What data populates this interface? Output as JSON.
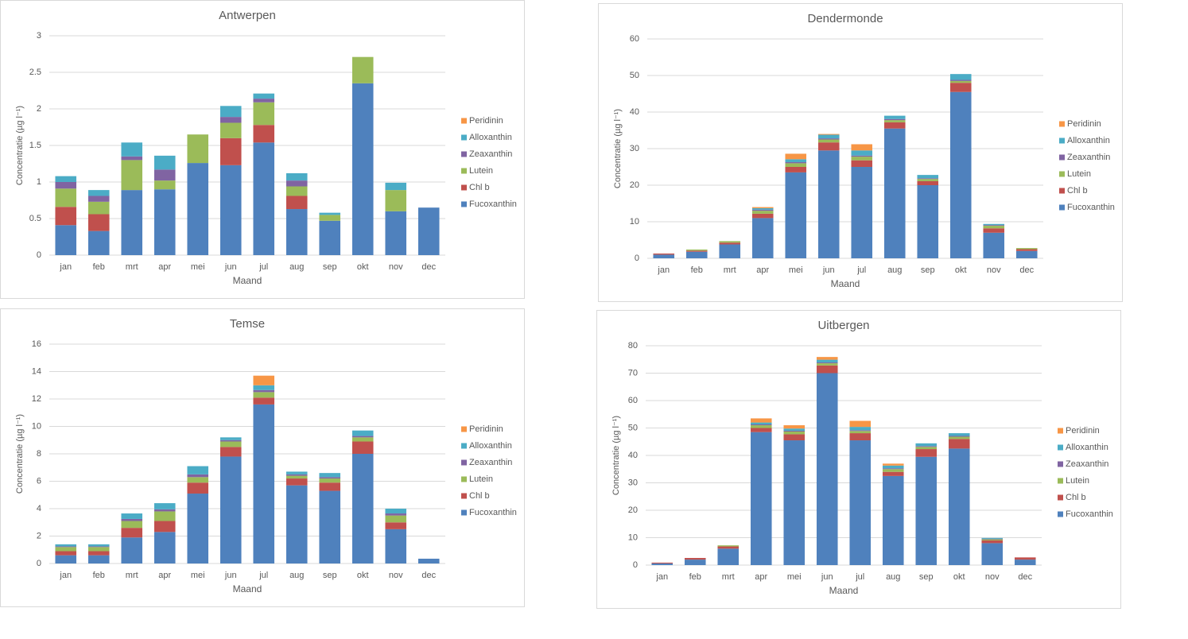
{
  "chart_data": [
    {
      "type": "bar",
      "stacked": true,
      "title": "Antwerpen",
      "x_label": "Maand",
      "y_label": "Concentratie (µg l⁻¹)",
      "categories": [
        "jan",
        "feb",
        "mrt",
        "apr",
        "mei",
        "jun",
        "jul",
        "aug",
        "sep",
        "okt",
        "nov",
        "dec"
      ],
      "ylim": [
        0,
        3
      ],
      "yticks": [
        0,
        0.5,
        1,
        1.5,
        2,
        2.5,
        3
      ],
      "grid": true,
      "legend": "right",
      "series": [
        {
          "name": "Fucoxanthin",
          "color": "#4f81bd",
          "values": [
            0.41,
            0.33,
            0.89,
            0.9,
            1.26,
            1.23,
            1.54,
            0.63,
            0.47,
            2.35,
            0.6,
            0.65
          ]
        },
        {
          "name": "Chl b",
          "color": "#c0504d",
          "values": [
            0.25,
            0.23,
            0,
            0,
            0,
            0.37,
            0.24,
            0.18,
            0,
            0,
            0,
            0
          ]
        },
        {
          "name": "Lutein",
          "color": "#9bbb59",
          "values": [
            0.25,
            0.17,
            0.41,
            0.12,
            0.39,
            0.21,
            0.31,
            0.13,
            0.08,
            0.36,
            0.29,
            0
          ]
        },
        {
          "name": "Zeaxanthin",
          "color": "#8064a2",
          "values": [
            0.09,
            0.08,
            0.05,
            0.15,
            0,
            0.08,
            0.05,
            0.08,
            0,
            0,
            0,
            0
          ]
        },
        {
          "name": "Alloxanthin",
          "color": "#4bacc6",
          "values": [
            0.08,
            0.08,
            0.19,
            0.19,
            0,
            0.15,
            0.07,
            0.1,
            0.03,
            0,
            0.1,
            0
          ]
        },
        {
          "name": "Peridinin",
          "color": "#f79646",
          "values": [
            0,
            0,
            0,
            0,
            0,
            0,
            0,
            0,
            0,
            0,
            0,
            0
          ]
        }
      ]
    },
    {
      "type": "bar",
      "stacked": true,
      "title": "Dendermonde",
      "x_label": "Maand",
      "y_label": "Concentratie (µg l⁻¹)",
      "categories": [
        "jan",
        "feb",
        "mrt",
        "apr",
        "mei",
        "jun",
        "jul",
        "aug",
        "sep",
        "okt",
        "nov",
        "dec"
      ],
      "ylim": [
        0,
        60
      ],
      "yticks": [
        0,
        10,
        20,
        30,
        40,
        50,
        60
      ],
      "grid": true,
      "legend": "right",
      "series": [
        {
          "name": "Fucoxanthin",
          "color": "#4f81bd",
          "values": [
            1,
            1.8,
            3.8,
            11,
            23.5,
            29.5,
            25,
            35.5,
            20,
            45.5,
            7,
            2
          ]
        },
        {
          "name": "Chl b",
          "color": "#c0504d",
          "values": [
            0.3,
            0.3,
            0.5,
            1.2,
            1.5,
            2.2,
            1.8,
            1.7,
            1.1,
            2.5,
            1.2,
            0.5
          ]
        },
        {
          "name": "Lutein",
          "color": "#9bbb59",
          "values": [
            0,
            0.3,
            0.4,
            0.8,
            1,
            0.8,
            1,
            0.6,
            0.6,
            0.5,
            0.7,
            0.3
          ]
        },
        {
          "name": "Zeaxanthin",
          "color": "#8064a2",
          "values": [
            0,
            0,
            0,
            0.3,
            0.3,
            0.3,
            0.3,
            0.3,
            0.2,
            0.3,
            0.2,
            0
          ]
        },
        {
          "name": "Alloxanthin",
          "color": "#4bacc6",
          "values": [
            0,
            0,
            0,
            0.4,
            0.8,
            1,
            1.4,
            0.9,
            0.9,
            1.6,
            0.3,
            0
          ]
        },
        {
          "name": "Peridinin",
          "color": "#f79646",
          "values": [
            0,
            0,
            0,
            0.3,
            1.5,
            0.2,
            1.7,
            0,
            0,
            0,
            0,
            0
          ]
        }
      ]
    },
    {
      "type": "bar",
      "stacked": true,
      "title": "Temse",
      "x_label": "Maand",
      "y_label": "Concentratie (µg l⁻¹)",
      "categories": [
        "jan",
        "feb",
        "mrt",
        "apr",
        "mei",
        "jun",
        "jul",
        "aug",
        "sep",
        "okt",
        "nov",
        "dec"
      ],
      "ylim": [
        0,
        16
      ],
      "yticks": [
        0,
        2,
        4,
        6,
        8,
        10,
        12,
        14,
        16
      ],
      "grid": true,
      "legend": "right",
      "series": [
        {
          "name": "Fucoxanthin",
          "color": "#4f81bd",
          "values": [
            0.6,
            0.6,
            1.9,
            2.3,
            5.1,
            7.8,
            11.6,
            5.7,
            5.3,
            8,
            2.5,
            0.35
          ]
        },
        {
          "name": "Chl b",
          "color": "#c0504d",
          "values": [
            0.3,
            0.3,
            0.7,
            0.8,
            0.8,
            0.7,
            0.5,
            0.5,
            0.6,
            0.9,
            0.5,
            0
          ]
        },
        {
          "name": "Lutein",
          "color": "#9bbb59",
          "values": [
            0.3,
            0.3,
            0.5,
            0.7,
            0.4,
            0.4,
            0.4,
            0.2,
            0.3,
            0.3,
            0.5,
            0
          ]
        },
        {
          "name": "Zeaxanthin",
          "color": "#8064a2",
          "values": [
            0.05,
            0.05,
            0.15,
            0.15,
            0.2,
            0.1,
            0.15,
            0.1,
            0.1,
            0.1,
            0.15,
            0
          ]
        },
        {
          "name": "Alloxanthin",
          "color": "#4bacc6",
          "values": [
            0.15,
            0.15,
            0.4,
            0.45,
            0.6,
            0.2,
            0.35,
            0.2,
            0.3,
            0.4,
            0.35,
            0
          ]
        },
        {
          "name": "Peridinin",
          "color": "#f79646",
          "values": [
            0,
            0,
            0,
            0,
            0,
            0,
            0.7,
            0,
            0,
            0,
            0,
            0
          ]
        }
      ]
    },
    {
      "type": "bar",
      "stacked": true,
      "title": "Uitbergen",
      "x_label": "Maand",
      "y_label": "Concentratie (µg l⁻¹)",
      "categories": [
        "jan",
        "feb",
        "mrt",
        "apr",
        "mei",
        "jun",
        "jul",
        "aug",
        "sep",
        "okt",
        "nov",
        "dec"
      ],
      "ylim": [
        0,
        80
      ],
      "yticks": [
        0,
        10,
        20,
        30,
        40,
        50,
        60,
        70,
        80
      ],
      "grid": true,
      "legend": "right",
      "series": [
        {
          "name": "Fucoxanthin",
          "color": "#4f81bd",
          "values": [
            0.6,
            2,
            6,
            48.5,
            45.5,
            70,
            45.5,
            32.5,
            39.5,
            42.5,
            8,
            2
          ]
        },
        {
          "name": "Chl b",
          "color": "#c0504d",
          "values": [
            0.3,
            0.6,
            0.8,
            1.5,
            2.2,
            2.8,
            2.6,
            1.5,
            2.8,
            3.5,
            1,
            0.8
          ]
        },
        {
          "name": "Lutein",
          "color": "#9bbb59",
          "values": [
            0,
            0,
            0.4,
            1,
            1,
            0.8,
            0.8,
            1,
            0.8,
            0.8,
            0.4,
            0
          ]
        },
        {
          "name": "Zeaxanthin",
          "color": "#8064a2",
          "values": [
            0,
            0,
            0,
            0.3,
            0.3,
            0.3,
            0.3,
            0.3,
            0.3,
            0.3,
            0.2,
            0
          ]
        },
        {
          "name": "Alloxanthin",
          "color": "#4bacc6",
          "values": [
            0,
            0,
            0,
            0.7,
            0.8,
            1,
            1.2,
            1,
            1,
            1,
            0.3,
            0
          ]
        },
        {
          "name": "Peridinin",
          "color": "#f79646",
          "values": [
            0,
            0,
            0,
            1.5,
            1.2,
            1,
            2.2,
            0.7,
            0,
            0,
            0,
            0
          ]
        }
      ]
    }
  ]
}
